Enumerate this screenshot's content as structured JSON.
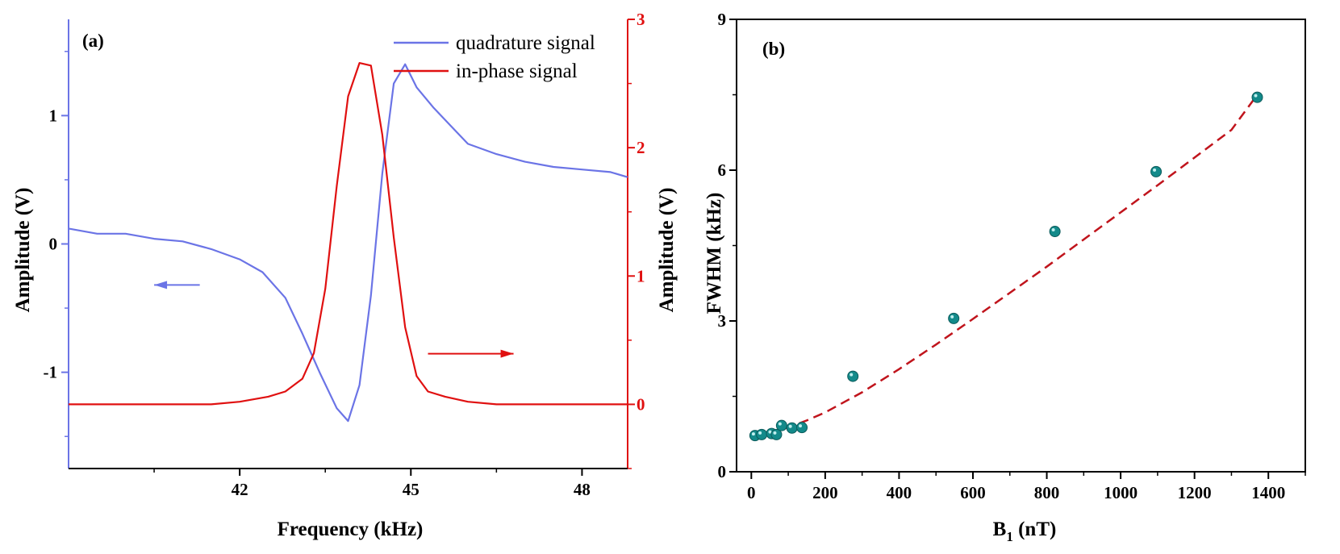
{
  "colors": {
    "quadrature": "#6b74e6",
    "in_phase": "#e01010",
    "points": "#138a8a",
    "fit": "#c0141c",
    "axis": "#000000"
  },
  "chart_data": [
    {
      "panel_label": "(a)",
      "type": "line",
      "xlabel": "Frequency (kHz)",
      "ylabel_left": "Amplitude (V)",
      "ylabel_right": "Amplitude (V)",
      "xlim": [
        39,
        48.8
      ],
      "xticks": [
        42,
        45,
        48
      ],
      "ylim_left": [
        -1.75,
        1.75
      ],
      "yticks_left": [
        -1,
        0,
        1
      ],
      "ylim_right": [
        -0.5,
        3.0
      ],
      "yticks_right": [
        0,
        1,
        2,
        3
      ],
      "legend_position": "top-right",
      "grid": false,
      "series": [
        {
          "name": "quadrature signal",
          "axis": "left",
          "color_key": "quadrature",
          "x": [
            39.0,
            39.5,
            40.0,
            40.5,
            41.0,
            41.5,
            42.0,
            42.4,
            42.8,
            43.1,
            43.4,
            43.7,
            43.9,
            44.1,
            44.3,
            44.5,
            44.7,
            44.9,
            45.1,
            45.4,
            45.7,
            46.0,
            46.5,
            47.0,
            47.5,
            48.0,
            48.5,
            48.8
          ],
          "y": [
            0.12,
            0.08,
            0.08,
            0.04,
            0.02,
            -0.04,
            -0.12,
            -0.22,
            -0.42,
            -0.7,
            -1.0,
            -1.28,
            -1.38,
            -1.1,
            -0.4,
            0.55,
            1.25,
            1.4,
            1.22,
            1.06,
            0.92,
            0.78,
            0.7,
            0.64,
            0.6,
            0.58,
            0.56,
            0.52
          ]
        },
        {
          "name": "in-phase signal",
          "axis": "right",
          "color_key": "in_phase",
          "x": [
            39.0,
            39.5,
            40.0,
            40.5,
            41.0,
            41.5,
            42.0,
            42.5,
            42.8,
            43.1,
            43.3,
            43.5,
            43.7,
            43.9,
            44.1,
            44.3,
            44.5,
            44.7,
            44.9,
            45.1,
            45.3,
            45.6,
            46.0,
            46.5,
            47.0,
            47.5,
            48.0,
            48.5,
            48.8
          ],
          "y": [
            0.0,
            0.0,
            0.0,
            0.0,
            0.0,
            0.0,
            0.02,
            0.06,
            0.1,
            0.2,
            0.4,
            0.9,
            1.7,
            2.4,
            2.66,
            2.64,
            2.1,
            1.3,
            0.6,
            0.22,
            0.1,
            0.06,
            0.02,
            0.0,
            0.0,
            0.0,
            0.0,
            0.0,
            0.0
          ]
        }
      ],
      "annotations": [
        {
          "type": "arrow",
          "direction": "left",
          "color_key": "quadrature",
          "from": [
            41.3,
            -0.32
          ],
          "to": [
            40.5,
            -0.32
          ]
        },
        {
          "type": "arrow",
          "direction": "right",
          "color_key": "in_phase",
          "from": [
            45.3,
            0.395
          ],
          "to": [
            46.8,
            0.395
          ]
        }
      ]
    },
    {
      "panel_label": "(b)",
      "type": "scatter",
      "xlabel_main": "B",
      "xlabel_sub": "1",
      "xlabel_unit": " (nT)",
      "ylabel": "FWHM (kHz)",
      "xlim": [
        -40,
        1500
      ],
      "xticks": [
        0,
        200,
        400,
        600,
        800,
        1000,
        1200,
        1400
      ],
      "ylim": [
        0,
        9
      ],
      "yticks": [
        0,
        3,
        6,
        9
      ],
      "grid": false,
      "points": {
        "x": [
          10,
          28,
          55,
          68,
          82,
          110,
          137,
          275,
          548,
          822,
          1096,
          1370
        ],
        "y": [
          0.72,
          0.74,
          0.76,
          0.74,
          0.92,
          0.87,
          0.88,
          1.9,
          3.05,
          4.78,
          5.97,
          7.45
        ]
      },
      "fit_line": {
        "style": "dashed",
        "x": [
          10,
          50,
          100,
          150,
          200,
          300,
          400,
          500,
          600,
          700,
          800,
          900,
          1000,
          1100,
          1200,
          1300,
          1370
        ],
        "y": [
          0.72,
          0.78,
          0.88,
          1.02,
          1.18,
          1.58,
          2.04,
          2.53,
          3.04,
          3.56,
          4.08,
          4.62,
          5.16,
          5.7,
          6.25,
          6.8,
          7.5
        ]
      }
    }
  ]
}
